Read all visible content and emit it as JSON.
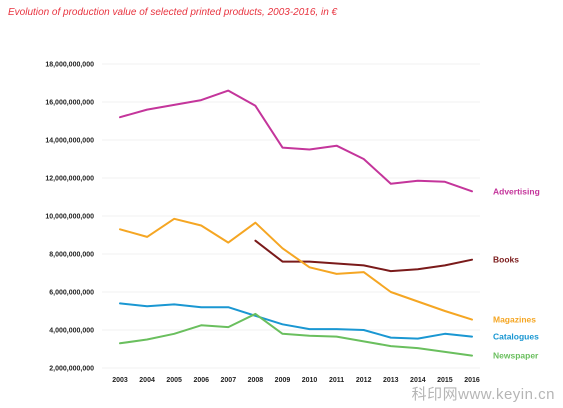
{
  "chart_data": {
    "type": "line",
    "title": "Evolution of production value of selected printed products, 2003-2016, in €",
    "xlabel": "",
    "ylabel": "",
    "x": [
      "2003",
      "2004",
      "2005",
      "2006",
      "2007",
      "2008",
      "2009",
      "2010",
      "2011",
      "2012",
      "2013",
      "2014",
      "2015",
      "2016"
    ],
    "ylim": [
      2000000000,
      18000000000
    ],
    "yticks": [
      "2,000,000,000",
      "4,000,000,000",
      "6,000,000,000",
      "8,000,000,000",
      "10,000,000,000",
      "12,000,000,000",
      "14,000,000,000",
      "16,000,000,000",
      "18,000,000,000"
    ],
    "grid": true,
    "series": [
      {
        "name": "Advertising",
        "color": "#c4359b",
        "values": [
          15200000000,
          15600000000,
          15850000000,
          16100000000,
          16600000000,
          15800000000,
          13600000000,
          13500000000,
          13700000000,
          13000000000,
          11700000000,
          11850000000,
          11800000000,
          11300000000
        ]
      },
      {
        "name": "Books",
        "color": "#7a1a1a",
        "values": [
          null,
          null,
          null,
          null,
          null,
          8700000000,
          7600000000,
          7600000000,
          7500000000,
          7400000000,
          7100000000,
          7200000000,
          7400000000,
          7700000000
        ]
      },
      {
        "name": "Magazines",
        "color": "#f5a623",
        "values": [
          9300000000,
          8900000000,
          9850000000,
          9500000000,
          8600000000,
          9650000000,
          8300000000,
          7300000000,
          6950000000,
          7050000000,
          6000000000,
          5500000000,
          5000000000,
          4550000000
        ]
      },
      {
        "name": "Catalogues",
        "color": "#1a97d2",
        "values": [
          5400000000,
          5250000000,
          5350000000,
          5200000000,
          5200000000,
          4750000000,
          4300000000,
          4050000000,
          4050000000,
          4000000000,
          3600000000,
          3550000000,
          3800000000,
          3650000000
        ]
      },
      {
        "name": "Newspaper",
        "color": "#6abf5e",
        "values": [
          3300000000,
          3500000000,
          3800000000,
          4250000000,
          4150000000,
          4850000000,
          3800000000,
          3700000000,
          3650000000,
          3400000000,
          3150000000,
          3050000000,
          2850000000,
          2650000000
        ]
      }
    ]
  },
  "watermark": "科印网www.keyin.cn"
}
